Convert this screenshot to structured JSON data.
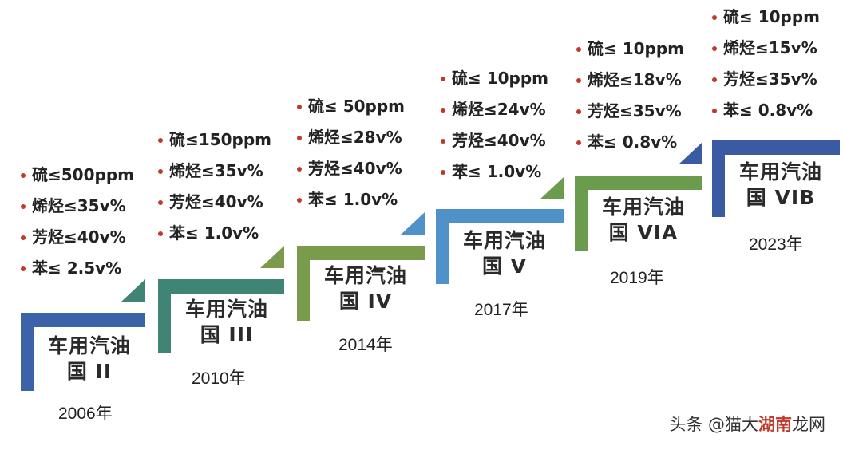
{
  "colors": {
    "step_1": "#3c63a8",
    "step_2": "#3f8474",
    "step_3": "#7a9a4c",
    "step_4": "#4f91c8",
    "step_5": "#6b9c4e",
    "step_6": "#3a5aa2",
    "bullet": "#c0392b"
  },
  "stages": [
    {
      "label_line1": "车用汽油",
      "label_line2": "国 II",
      "year": "2006年",
      "specs": [
        "硫≤500ppm",
        "烯烃≤35v%",
        "芳烃≤40v%",
        "苯≤ 2.5v%"
      ]
    },
    {
      "label_line1": "车用汽油",
      "label_line2": "国 III",
      "year": "2010年",
      "specs": [
        "硫≤150ppm",
        "烯烃≤35v%",
        "芳烃≤40v%",
        "苯≤ 1.0v%"
      ]
    },
    {
      "label_line1": "车用汽油",
      "label_line2": "国 IV",
      "year": "2014年",
      "specs": [
        "硫≤ 50ppm",
        "烯烃≤28v%",
        "芳烃≤40v%",
        "苯≤ 1.0v%"
      ]
    },
    {
      "label_line1": "车用汽油",
      "label_line2": "国 V",
      "year": "2017年",
      "specs": [
        "硫≤ 10ppm",
        "烯烃≤24v%",
        "芳烃≤40v%",
        "苯≤ 1.0v%"
      ]
    },
    {
      "label_line1": "车用汽油",
      "label_line2": "国 VIA",
      "year": "2019年",
      "specs": [
        "硫≤ 10ppm",
        "烯烃≤18v%",
        "芳烃≤35v%",
        "苯≤ 0.8v%"
      ]
    },
    {
      "label_line1": "车用汽油",
      "label_line2": "国 VIB",
      "year": "2023年",
      "specs": [
        "硫≤ 10ppm",
        "烯烃≤15v%",
        "芳烃≤35v%",
        "苯≤ 0.8v%"
      ]
    }
  ],
  "watermark": {
    "prefix": "头条 @猫大",
    "highlight": "湖南",
    "suffix": "龙网"
  }
}
